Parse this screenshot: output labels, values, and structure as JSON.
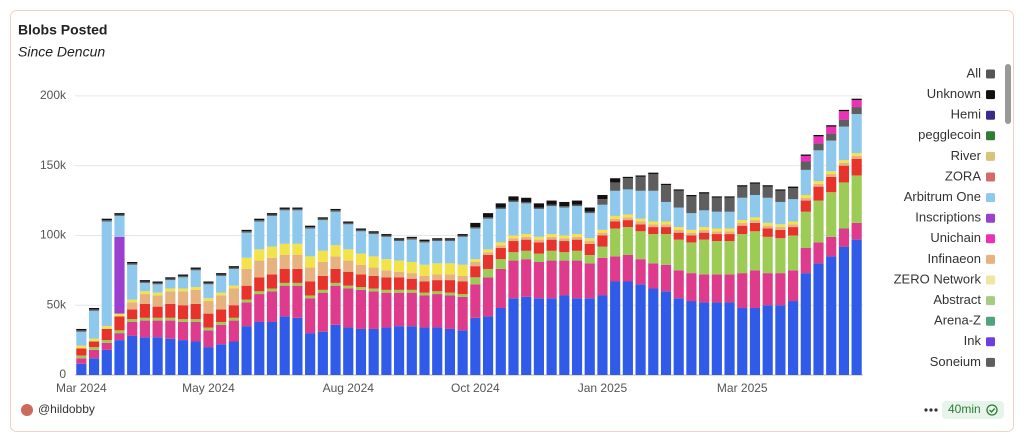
{
  "chart_data": {
    "type": "stacked_bar",
    "title": "Blobs Posted",
    "subtitle": "Since Dencun",
    "categories": [
      "Mar 2024",
      null,
      null,
      null,
      null,
      null,
      null,
      null,
      null,
      null,
      "May 2024",
      null,
      null,
      null,
      null,
      null,
      null,
      null,
      null,
      null,
      null,
      "Aug 2024",
      null,
      null,
      null,
      null,
      null,
      null,
      null,
      null,
      null,
      "Oct 2024",
      null,
      null,
      null,
      null,
      null,
      null,
      null,
      null,
      null,
      "Jan 2025",
      null,
      null,
      null,
      null,
      null,
      null,
      null,
      null,
      null,
      null,
      "Mar 2025",
      null,
      null,
      null,
      null,
      null,
      null,
      null,
      null,
      null
    ],
    "ylim": [
      0,
      220000
    ],
    "yticks": [
      0,
      {
        "value": 50000,
        "label": "50k"
      },
      {
        "value": 100000,
        "label": "100k"
      },
      {
        "value": 150000,
        "label": "150k"
      },
      {
        "value": 200000,
        "label": "200k"
      }
    ],
    "grid": true,
    "series": [
      {
        "color": "#2f5be8",
        "values": [
          8000,
          12000,
          18000,
          25000,
          28000,
          27000,
          27000,
          26000,
          25000,
          24000,
          20000,
          22000,
          24000,
          35000,
          38000,
          38000,
          42000,
          41000,
          30000,
          31000,
          36000,
          34000,
          33000,
          33000,
          34000,
          35000,
          35000,
          34000,
          34000,
          33000,
          32000,
          41000,
          42000,
          48000,
          55000,
          56000,
          55000,
          55000,
          57000,
          55000,
          55000,
          57000,
          67000,
          67000,
          65000,
          62000,
          60000,
          55000,
          53000,
          52000,
          52000,
          52000,
          48000,
          48000,
          50000,
          50000,
          53000,
          73000,
          80000,
          85000,
          92000,
          97000
        ]
      },
      {
        "color": "#de3b8c",
        "values": [
          4000,
          6000,
          5000,
          5000,
          10000,
          12000,
          12000,
          13000,
          13000,
          14000,
          12000,
          14000,
          15000,
          17000,
          20000,
          22000,
          22000,
          23000,
          25000,
          28000,
          28000,
          28000,
          28000,
          27000,
          25000,
          24000,
          24000,
          23000,
          24000,
          24000,
          24000,
          24000,
          28000,
          28000,
          27000,
          27000,
          26000,
          27000,
          25000,
          27000,
          25000,
          27000,
          18000,
          19000,
          18000,
          18000,
          19000,
          20000,
          20000,
          20000,
          20000,
          20000,
          25000,
          27000,
          23000,
          23000,
          22000,
          18000,
          15000,
          14000,
          13000,
          12000
        ]
      },
      {
        "color": "#9ccc55",
        "values": [
          2000,
          2000,
          2000,
          2000,
          2000,
          2000,
          2000,
          2000,
          2000,
          2000,
          2000,
          2000,
          2000,
          2000,
          2000,
          2000,
          2000,
          2000,
          2000,
          2000,
          2000,
          2000,
          2000,
          2000,
          2000,
          2000,
          2000,
          2000,
          2000,
          2000,
          2000,
          5000,
          6000,
          7000,
          6000,
          6000,
          6000,
          7000,
          6000,
          7000,
          6000,
          8000,
          20000,
          20000,
          20000,
          21000,
          22000,
          22000,
          22000,
          25000,
          24000,
          24000,
          28000,
          28000,
          26000,
          25000,
          25000,
          26000,
          30000,
          32000,
          33000,
          34000
        ]
      },
      {
        "color": "#e8322c",
        "values": [
          5000,
          4000,
          8000,
          10000,
          7000,
          10000,
          8000,
          10000,
          10000,
          11000,
          10000,
          9000,
          9000,
          10000,
          10000,
          10000,
          10000,
          10000,
          10000,
          10000,
          10000,
          10000,
          9000,
          9000,
          9000,
          9000,
          8000,
          8000,
          8000,
          9000,
          9000,
          8000,
          10000,
          8000,
          8000,
          8000,
          8000,
          8000,
          8000,
          8000,
          8000,
          8000,
          5000,
          5000,
          5000,
          5000,
          5000,
          5000,
          5000,
          5000,
          5000,
          5000,
          6000,
          6000,
          6000,
          6000,
          6000,
          8000,
          10000,
          11000,
          12000,
          12000
        ]
      },
      {
        "color": "#e6b27f",
        "values": [
          0,
          0,
          0,
          0,
          5000,
          7000,
          8000,
          9000,
          10000,
          10000,
          9000,
          10000,
          12000,
          12000,
          12000,
          12000,
          10000,
          10000,
          10000,
          10000,
          9000,
          8000,
          7000,
          6000,
          5000,
          4000,
          4000,
          4000,
          4000,
          4000,
          4000,
          3000,
          2000,
          2000,
          2000,
          2000,
          2000,
          2000,
          2000,
          2000,
          2000,
          2000,
          2000,
          2000,
          2000,
          2000,
          2000,
          2000,
          2000,
          2000,
          2000,
          2000,
          2000,
          2000,
          2000,
          2000,
          2000,
          2000,
          2000,
          2000,
          2000,
          2000
        ]
      },
      {
        "color": "#f2e34a",
        "values": [
          2000,
          2000,
          2000,
          2000,
          2000,
          2000,
          2000,
          2000,
          2000,
          2000,
          2000,
          2000,
          2000,
          8000,
          8000,
          8000,
          8000,
          8000,
          8000,
          8000,
          8000,
          8000,
          8000,
          8000,
          8000,
          8000,
          8000,
          8000,
          8000,
          8000,
          8000,
          2000,
          2000,
          2000,
          2000,
          2000,
          2000,
          2000,
          2000,
          2000,
          2000,
          2000,
          2000,
          2000,
          2000,
          2000,
          2000,
          2000,
          2000,
          2000,
          2000,
          2000,
          2000,
          2000,
          2000,
          2000,
          2000,
          2000,
          2000,
          2000,
          2000,
          2000
        ]
      },
      {
        "color": "#9b3fcf",
        "values": [
          0,
          0,
          0,
          55000,
          0,
          0,
          0,
          0,
          0,
          0,
          0,
          0,
          0,
          0,
          0,
          0,
          0,
          0,
          0,
          0,
          0,
          0,
          0,
          0,
          0,
          0,
          0,
          0,
          0,
          0,
          0,
          0,
          0,
          0,
          0,
          0,
          0,
          0,
          0,
          0,
          0,
          0,
          0,
          0,
          0,
          0,
          0,
          0,
          0,
          0,
          0,
          0,
          0,
          0,
          0,
          0,
          0,
          0,
          0,
          0,
          0,
          0
        ]
      },
      {
        "color": "#8ec8ec",
        "values": [
          10000,
          20000,
          75000,
          15000,
          25000,
          6000,
          6000,
          6000,
          8000,
          12000,
          10000,
          12000,
          12000,
          18000,
          20000,
          22000,
          24000,
          24000,
          20000,
          22000,
          24000,
          18000,
          16000,
          16000,
          16000,
          14000,
          16000,
          16000,
          16000,
          16000,
          20000,
          22000,
          22000,
          24000,
          24000,
          22000,
          20000,
          20000,
          20000,
          20000,
          18000,
          18000,
          18000,
          18000,
          20000,
          22000,
          14000,
          14000,
          12000,
          12000,
          12000,
          12000,
          16000,
          16000,
          18000,
          16000,
          16000,
          18000,
          22000,
          22000,
          24000,
          28000
        ]
      },
      {
        "color": "#5e5e5e",
        "values": [
          1000,
          1000,
          1000,
          1000,
          1000,
          1000,
          1000,
          1000,
          1000,
          1000,
          1000,
          1000,
          1000,
          1000,
          1000,
          1000,
          1000,
          1000,
          1000,
          1000,
          1000,
          1000,
          1000,
          1000,
          1000,
          1000,
          1000,
          1000,
          1000,
          1000,
          1000,
          1000,
          1000,
          1000,
          1000,
          1000,
          1000,
          1000,
          1000,
          1000,
          1000,
          4000,
          6000,
          8000,
          10000,
          12000,
          12000,
          12000,
          12000,
          12000,
          10000,
          10000,
          8000,
          8000,
          8000,
          8000,
          8000,
          6000,
          5000,
          5000,
          5000,
          5000
        ]
      },
      {
        "color": "#ee2fb8",
        "values": [
          0,
          0,
          0,
          0,
          0,
          0,
          0,
          0,
          0,
          0,
          0,
          0,
          0,
          0,
          0,
          0,
          0,
          0,
          0,
          0,
          0,
          0,
          0,
          0,
          0,
          0,
          0,
          0,
          0,
          0,
          0,
          0,
          0,
          0,
          0,
          0,
          0,
          0,
          0,
          0,
          0,
          0,
          0,
          0,
          0,
          0,
          0,
          0,
          0,
          0,
          0,
          0,
          0,
          0,
          0,
          0,
          0,
          4000,
          5000,
          5000,
          6000,
          5000
        ]
      },
      {
        "color": "#111111",
        "values": [
          1000,
          1000,
          1000,
          1000,
          1000,
          1000,
          1000,
          1000,
          1000,
          1000,
          1000,
          1000,
          1000,
          1000,
          1000,
          1000,
          1000,
          1000,
          1000,
          1000,
          1000,
          1000,
          1000,
          1000,
          1000,
          1000,
          1000,
          1000,
          1000,
          1000,
          1000,
          3000,
          3000,
          3000,
          3000,
          3000,
          3000,
          3000,
          3000,
          3000,
          3000,
          3000,
          3000,
          1000,
          1000,
          1000,
          1000,
          1000,
          1000,
          1000,
          1000,
          1000,
          1000,
          1000,
          1000,
          1000,
          1000,
          1000,
          1000,
          1000,
          1000,
          1000
        ]
      }
    ],
    "legend": [
      {
        "name": "All",
        "color": "#555555"
      },
      {
        "name": "Unknown",
        "color": "#111111"
      },
      {
        "name": "Hemi",
        "color": "#3b2a8c"
      },
      {
        "name": "pegglecoin",
        "color": "#2e7d32"
      },
      {
        "name": "River",
        "color": "#d8c37a"
      },
      {
        "name": "ZORA",
        "color": "#d9686b"
      },
      {
        "name": "Arbitrum One",
        "color": "#8ec8ec"
      },
      {
        "name": "Inscriptions",
        "color": "#9b3fcf"
      },
      {
        "name": "Unichain",
        "color": "#ee2fb8"
      },
      {
        "name": "Infinaeon",
        "color": "#e6b27f"
      },
      {
        "name": "ZERO Network",
        "color": "#efe6a0"
      },
      {
        "name": "Abstract",
        "color": "#a6cc80"
      },
      {
        "name": "Arena-Z",
        "color": "#4fa37f"
      },
      {
        "name": "Ink",
        "color": "#6a3ee0"
      },
      {
        "name": "Soneium",
        "color": "#5e5e5e"
      }
    ],
    "author": "@hildobby",
    "refresh": "40min"
  }
}
